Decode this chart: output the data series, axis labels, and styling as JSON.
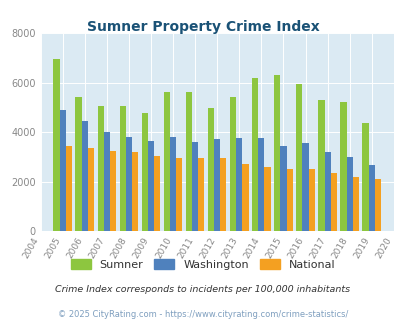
{
  "title": "Sumner Property Crime Index",
  "years": [
    2004,
    2005,
    2006,
    2007,
    2008,
    2009,
    2010,
    2011,
    2012,
    2013,
    2014,
    2015,
    2016,
    2017,
    2018,
    2019,
    2020
  ],
  "sumner": [
    0,
    6950,
    5400,
    5050,
    5050,
    4750,
    5600,
    5600,
    4950,
    5400,
    6200,
    6300,
    5950,
    5300,
    5200,
    4350,
    0
  ],
  "washington": [
    0,
    4900,
    4450,
    4000,
    3800,
    3650,
    3800,
    3600,
    3700,
    3750,
    3750,
    3450,
    3550,
    3200,
    3000,
    2650,
    0
  ],
  "national": [
    0,
    3450,
    3350,
    3250,
    3200,
    3050,
    2950,
    2950,
    2950,
    2700,
    2600,
    2500,
    2500,
    2350,
    2200,
    2100,
    0
  ],
  "sumner_color": "#8dc63f",
  "washington_color": "#4f81bd",
  "national_color": "#f4a021",
  "fig_bg_color": "#ffffff",
  "plot_bg_color": "#dbeaf3",
  "ylim": [
    0,
    8000
  ],
  "yticks": [
    0,
    2000,
    4000,
    6000,
    8000
  ],
  "legend_labels": [
    "Sumner",
    "Washington",
    "National"
  ],
  "footnote1": "Crime Index corresponds to incidents per 100,000 inhabitants",
  "footnote2": "© 2025 CityRating.com - https://www.cityrating.com/crime-statistics/"
}
